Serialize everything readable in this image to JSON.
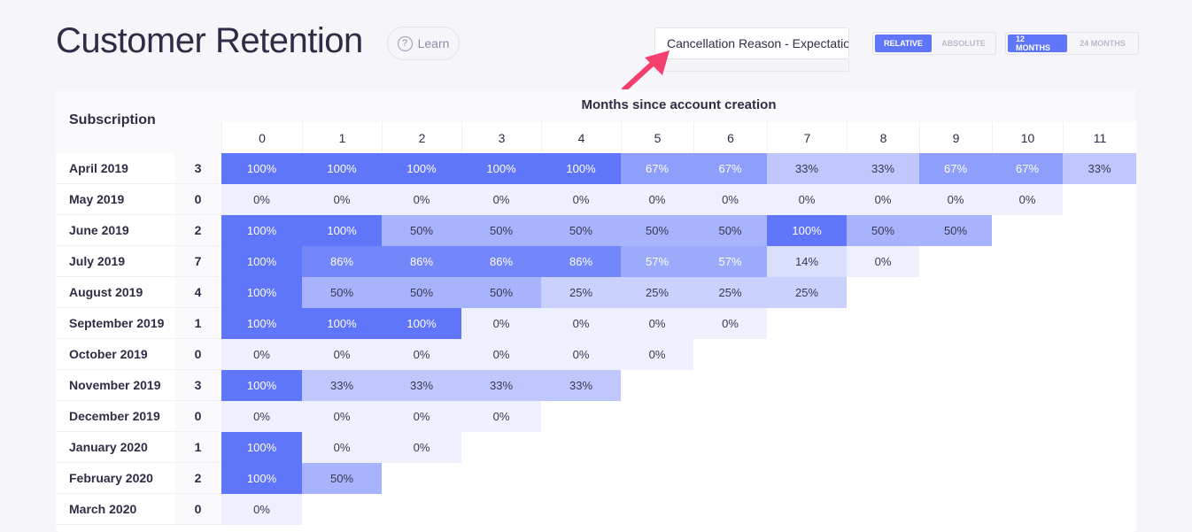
{
  "header": {
    "title": "Customer Retention",
    "learn_label": "Learn",
    "help_icon": "?"
  },
  "filter": {
    "value": "Cancellation Reason - Expectations"
  },
  "mode_toggle": {
    "options": [
      "RELATIVE",
      "ABSOLUTE"
    ],
    "selected": "RELATIVE"
  },
  "range_toggle": {
    "options": [
      "12 MONTHS",
      "24 MONTHS"
    ],
    "selected": "12 MONTHS"
  },
  "colors": {
    "accent": "#5f75fa",
    "empty": "#eef0fd",
    "arrow": "#f43f6e"
  },
  "table": {
    "row_header": "Subscription",
    "col_header": "Months since account creation",
    "months": [
      "0",
      "1",
      "2",
      "3",
      "4",
      "5",
      "6",
      "7",
      "8",
      "9",
      "10",
      "11"
    ],
    "rows": [
      {
        "label": "April 2019",
        "count": "3",
        "values": [
          "100%",
          "100%",
          "100%",
          "100%",
          "100%",
          "67%",
          "67%",
          "33%",
          "33%",
          "67%",
          "67%",
          "33%"
        ]
      },
      {
        "label": "May 2019",
        "count": "0",
        "values": [
          "0%",
          "0%",
          "0%",
          "0%",
          "0%",
          "0%",
          "0%",
          "0%",
          "0%",
          "0%",
          "0%"
        ]
      },
      {
        "label": "June 2019",
        "count": "2",
        "values": [
          "100%",
          "100%",
          "50%",
          "50%",
          "50%",
          "50%",
          "50%",
          "100%",
          "50%",
          "50%"
        ]
      },
      {
        "label": "July 2019",
        "count": "7",
        "values": [
          "100%",
          "86%",
          "86%",
          "86%",
          "86%",
          "57%",
          "57%",
          "14%",
          "0%"
        ]
      },
      {
        "label": "August 2019",
        "count": "4",
        "values": [
          "100%",
          "50%",
          "50%",
          "50%",
          "25%",
          "25%",
          "25%",
          "25%"
        ]
      },
      {
        "label": "September 2019",
        "count": "1",
        "values": [
          "100%",
          "100%",
          "100%",
          "0%",
          "0%",
          "0%",
          "0%"
        ]
      },
      {
        "label": "October 2019",
        "count": "0",
        "values": [
          "0%",
          "0%",
          "0%",
          "0%",
          "0%",
          "0%"
        ]
      },
      {
        "label": "November 2019",
        "count": "3",
        "values": [
          "100%",
          "33%",
          "33%",
          "33%",
          "33%"
        ]
      },
      {
        "label": "December 2019",
        "count": "0",
        "values": [
          "0%",
          "0%",
          "0%",
          "0%"
        ]
      },
      {
        "label": "January 2020",
        "count": "1",
        "values": [
          "100%",
          "0%",
          "0%"
        ]
      },
      {
        "label": "February 2020",
        "count": "2",
        "values": [
          "100%",
          "50%"
        ]
      },
      {
        "label": "March 2020",
        "count": "0",
        "values": [
          "0%"
        ]
      }
    ]
  }
}
